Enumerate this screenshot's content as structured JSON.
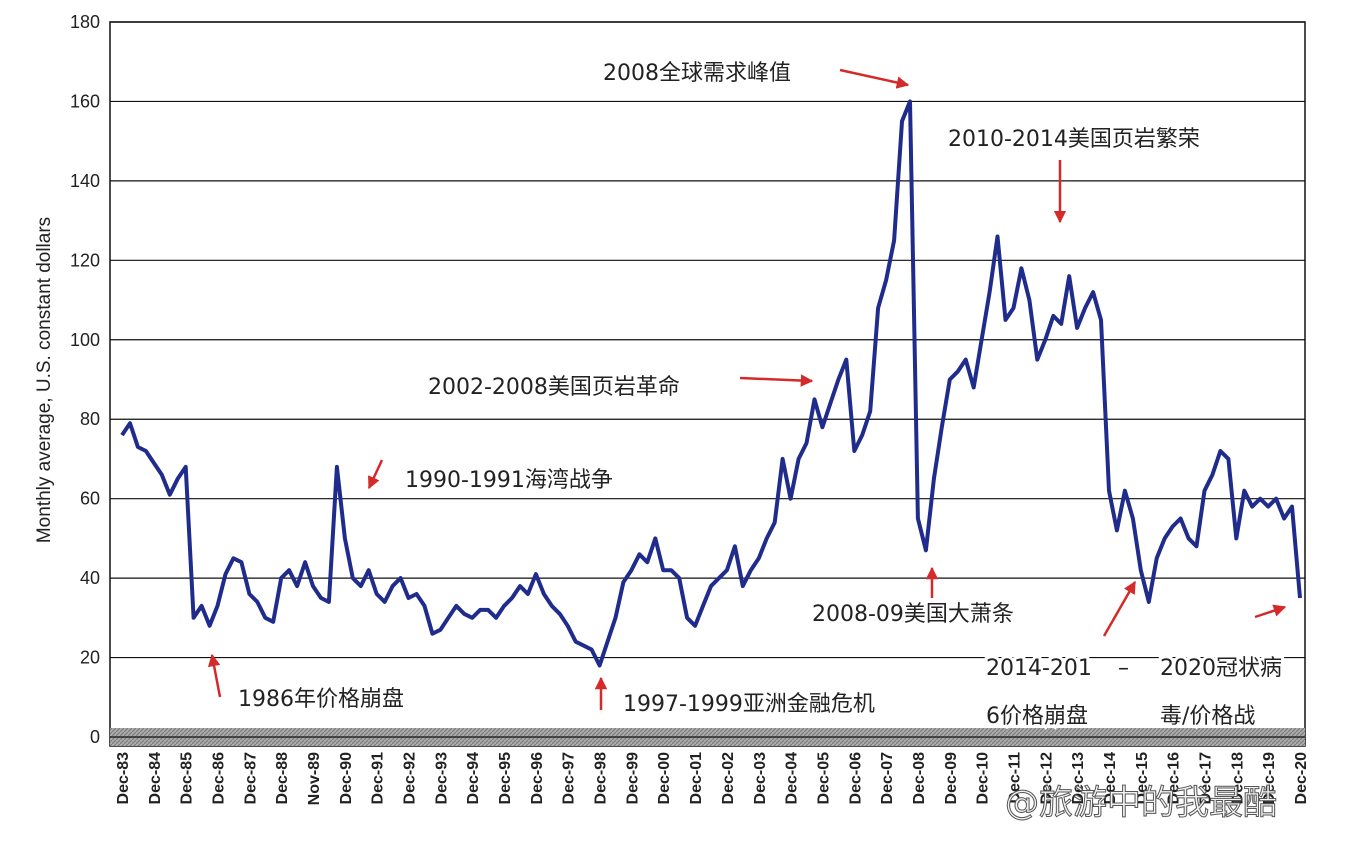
{
  "chart_data": {
    "type": "line",
    "ylabel": "Monthly average, U.S. constant dollars",
    "ylim": [
      0,
      180
    ],
    "yticks": [
      0,
      20,
      40,
      60,
      80,
      100,
      120,
      140,
      160,
      180
    ],
    "grid": true,
    "color": "#1f2c8c",
    "categories": [
      "Dec-83",
      null,
      null,
      null,
      "Dec-84",
      null,
      null,
      null,
      "Dec-85",
      null,
      null,
      null,
      "Dec-86",
      null,
      null,
      null,
      "Dec-87",
      null,
      null,
      null,
      "Dec-88",
      null,
      null,
      null,
      "Nov-89",
      null,
      null,
      null,
      "Dec-90",
      null,
      null,
      null,
      "Dec-91",
      null,
      null,
      null,
      "Dec-92",
      null,
      null,
      null,
      "Dec-93",
      null,
      null,
      null,
      "Dec-94",
      null,
      null,
      null,
      "Dec-95",
      null,
      null,
      null,
      "Dec-96",
      null,
      null,
      null,
      "Dec-97",
      null,
      null,
      null,
      "Dec-98",
      null,
      null,
      null,
      "Dec-99",
      null,
      null,
      null,
      "Dec-00",
      null,
      null,
      null,
      "Dec-01",
      null,
      null,
      null,
      "Dec-02",
      null,
      null,
      null,
      "Dec-03",
      null,
      null,
      null,
      "Dec-04",
      null,
      null,
      null,
      "Dec-05",
      null,
      null,
      null,
      "Dec-06",
      null,
      null,
      null,
      "Dec-07",
      null,
      null,
      null,
      "Dec-08",
      null,
      null,
      null,
      "Dec-09",
      null,
      null,
      null,
      "Dec-10",
      null,
      null,
      null,
      "Dec-11",
      null,
      null,
      null,
      "Dec-12",
      null,
      null,
      null,
      "Dec-13",
      null,
      null,
      null,
      "Dec-14",
      null,
      null,
      null,
      "Dec-15",
      null,
      null,
      null,
      "Dec-16",
      null,
      null,
      null,
      "Dec-17",
      null,
      null,
      null,
      "Dec-18",
      null,
      null,
      null,
      "Dec-19",
      null,
      null,
      null,
      "Dec-20"
    ],
    "values": [
      76,
      79,
      73,
      72,
      69,
      66,
      61,
      65,
      68,
      30,
      33,
      28,
      33,
      41,
      45,
      44,
      36,
      34,
      30,
      29,
      40,
      42,
      38,
      44,
      38,
      35,
      34,
      68,
      50,
      40,
      38,
      42,
      36,
      34,
      38,
      40,
      35,
      36,
      33,
      26,
      27,
      30,
      33,
      31,
      30,
      32,
      32,
      30,
      33,
      35,
      38,
      36,
      41,
      36,
      33,
      31,
      28,
      24,
      23,
      22,
      18,
      24,
      30,
      39,
      42,
      46,
      44,
      50,
      42,
      42,
      40,
      30,
      28,
      33,
      38,
      40,
      42,
      48,
      38,
      42,
      45,
      50,
      54,
      70,
      60,
      70,
      74,
      85,
      78,
      84,
      90,
      95,
      72,
      76,
      82,
      108,
      115,
      125,
      155,
      160,
      55,
      47,
      65,
      78,
      90,
      92,
      95,
      88,
      100,
      112,
      126,
      105,
      108,
      118,
      110,
      95,
      100,
      106,
      104,
      116,
      103,
      108,
      112,
      105,
      62,
      52,
      62,
      55,
      42,
      34,
      45,
      50,
      53,
      55,
      50,
      48,
      62,
      66,
      72,
      70,
      50,
      62,
      58,
      60,
      58,
      60,
      55,
      58,
      35
    ],
    "annotations": [
      "2008全球需求峰值",
      "2010-2014美国页岩繁荣",
      "2002-2008美国页岩革命",
      "1990-1991海湾战争",
      "1986年价格崩盘",
      "1997-1999亚洲金融危机",
      "2008-09美国大萧条",
      "2014-201",
      "6价格崩盘",
      "–",
      "2020冠状病",
      "毒/价格战"
    ],
    "watermark": "@旅游中的我最酷"
  }
}
